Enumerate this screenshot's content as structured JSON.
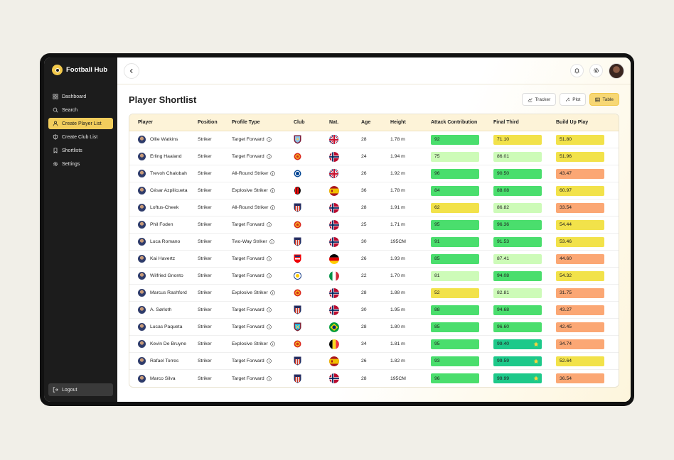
{
  "app": {
    "brand": "Football Hub"
  },
  "sidebar": {
    "items": [
      {
        "label": "Dashboard",
        "icon": "dashboard-icon"
      },
      {
        "label": "Search",
        "icon": "search-icon"
      },
      {
        "label": "Create Player List",
        "icon": "user-icon",
        "active": true
      },
      {
        "label": "Create Club List",
        "icon": "shield-icon"
      },
      {
        "label": "Shortlists",
        "icon": "bookmark-icon"
      },
      {
        "label": "Settings",
        "icon": "gear-icon"
      }
    ],
    "logout": "Logout"
  },
  "page": {
    "title": "Player Shortlist"
  },
  "views": [
    {
      "label": "Tracker",
      "icon": "chart-icon"
    },
    {
      "label": "Plot",
      "icon": "scatter-icon"
    },
    {
      "label": "Table",
      "icon": "table-icon",
      "active": true
    }
  ],
  "table": {
    "headers": [
      "Player",
      "Position",
      "Profile Type",
      "Club",
      "Nat.",
      "Age",
      "Height",
      "Attack Contribution",
      "Final Third",
      "Build Up Play"
    ],
    "rows": [
      {
        "player": "Ollie Watkins",
        "position": "Striker",
        "profile": "Target Forward",
        "club": "aston-villa",
        "nat": "england",
        "age": "28",
        "height": "1.78 m",
        "attack": "92",
        "final": "71.10",
        "build": "51.80"
      },
      {
        "player": "Erling Haaland",
        "position": "Striker",
        "profile": "Target Forward",
        "club": "man-utd",
        "nat": "norway",
        "age": "24",
        "height": "1.94 m",
        "attack": "75",
        "final": "86.01",
        "build": "51.96"
      },
      {
        "player": "Trevoh Chalobah",
        "position": "Striker",
        "profile": "All-Round Striker",
        "club": "chelsea",
        "nat": "england",
        "age": "26",
        "height": "1.92 m",
        "attack": "96",
        "final": "90.50",
        "build": "43.47"
      },
      {
        "player": "César Azpilicueta",
        "position": "Striker",
        "profile": "Explosive Striker",
        "club": "ac-milan",
        "nat": "spain",
        "age": "36",
        "height": "1.78 m",
        "attack": "84",
        "final": "88.08",
        "build": "60.97"
      },
      {
        "player": "Loftus-Cheek",
        "position": "Striker",
        "profile": "All-Round Striker",
        "club": "atletico",
        "nat": "norway",
        "age": "28",
        "height": "1.91 m",
        "attack": "62",
        "final": "86.82",
        "build": "33.54"
      },
      {
        "player": "Phil Foden",
        "position": "Striker",
        "profile": "Target Forward",
        "club": "man-utd",
        "nat": "norway",
        "age": "25",
        "height": "1.71 m",
        "attack": "95",
        "final": "96.36",
        "build": "54.44"
      },
      {
        "player": "Luca Romano",
        "position": "Striker",
        "profile": "Two-Way Striker",
        "club": "atletico",
        "nat": "norway",
        "age": "30",
        "height": "195CM",
        "attack": "91",
        "final": "91.53",
        "build": "53.46"
      },
      {
        "player": "Kai Havertz",
        "position": "Striker",
        "profile": "Target Forward",
        "club": "arsenal",
        "nat": "germany",
        "age": "26",
        "height": "1.93 m",
        "attack": "85",
        "final": "87.41",
        "build": "44.60"
      },
      {
        "player": "Wilfried Gnonto",
        "position": "Striker",
        "profile": "Target Forward",
        "club": "leeds",
        "nat": "italy",
        "age": "22",
        "height": "1.70 m",
        "attack": "81",
        "final": "94.08",
        "build": "54.32"
      },
      {
        "player": "Marcus Rashford",
        "position": "Striker",
        "profile": "Explosive Striker",
        "club": "man-utd",
        "nat": "norway",
        "age": "28",
        "height": "1.88 m",
        "attack": "52",
        "final": "82.81",
        "build": "31.75"
      },
      {
        "player": "A. Sørloth",
        "position": "Striker",
        "profile": "Target Forward",
        "club": "atletico",
        "nat": "norway",
        "age": "30",
        "height": "1.95 m",
        "attack": "88",
        "final": "94.68",
        "build": "43.27"
      },
      {
        "player": "Lucas Paqueta",
        "position": "Striker",
        "profile": "Target Forward",
        "club": "west-ham",
        "nat": "brazil",
        "age": "28",
        "height": "1.80 m",
        "attack": "85",
        "final": "96.60",
        "build": "42.45"
      },
      {
        "player": "Kevin De Bruyne",
        "position": "Striker",
        "profile": "Explosive Striker",
        "club": "man-utd",
        "nat": "belgium",
        "age": "34",
        "height": "1.81 m",
        "attack": "95",
        "final": "99.40",
        "final_star": true,
        "build": "34.74"
      },
      {
        "player": "Rafael Torres",
        "position": "Striker",
        "profile": "Target Forward",
        "club": "atletico",
        "nat": "spain",
        "age": "26",
        "height": "1.82 m",
        "attack": "93",
        "final": "99.59",
        "final_star": true,
        "build": "52.64"
      },
      {
        "player": "Marco Silva",
        "position": "Striker",
        "profile": "Target Forward",
        "club": "atletico",
        "nat": "norway",
        "age": "28",
        "height": "195CM",
        "attack": "96",
        "final": "99.99",
        "final_star": true,
        "build": "36.54"
      }
    ]
  },
  "colors": {
    "top_green": "#1dc98a",
    "green": "#4ade6d",
    "light_green": "#cdfbb8",
    "yellow": "#f2e24a",
    "orange": "#fba774",
    "accent": "#f2cd5c"
  }
}
